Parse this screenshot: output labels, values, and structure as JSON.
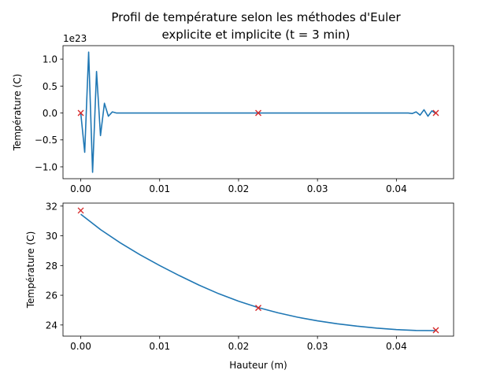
{
  "figure": {
    "title_line1": "Profil de température selon les méthodes d'Euler",
    "title_line2": "explicite et implicite (t = 3 min)"
  },
  "colors": {
    "line": "#1f77b4",
    "marker": "#d62728",
    "axes": "#000000",
    "background": "#ffffff"
  },
  "chart_data": [
    {
      "type": "line",
      "name": "explicit",
      "xlabel": "",
      "ylabel": "Température (C)",
      "offset_label": "1e23",
      "xlim": [
        -0.00225,
        0.04725
      ],
      "ylim": [
        -1.22,
        1.25
      ],
      "x_ticks": [
        0.0,
        0.01,
        0.02,
        0.03,
        0.04
      ],
      "x_tick_labels": [
        "0.00",
        "0.01",
        "0.02",
        "0.03",
        "0.04"
      ],
      "y_ticks": [
        -1.0,
        -0.5,
        0.0,
        0.5,
        1.0
      ],
      "y_tick_labels": [
        "−1.0",
        "−0.5",
        "0.0",
        "0.5",
        "1.0"
      ],
      "grid": false,
      "line": {
        "x": [
          0.0,
          0.0005,
          0.001,
          0.0015,
          0.002,
          0.0025,
          0.003,
          0.0035,
          0.004,
          0.0045,
          0.005,
          0.0415,
          0.042,
          0.0425,
          0.043,
          0.0435,
          0.044,
          0.0445,
          0.045
        ],
        "y": [
          0.0,
          -0.73,
          1.13,
          -1.1,
          0.77,
          -0.42,
          0.18,
          -0.06,
          0.02,
          0.0,
          0.0,
          0.0,
          -0.01,
          0.02,
          -0.04,
          0.06,
          -0.06,
          0.04,
          -0.01
        ]
      },
      "markers": {
        "x": [
          0.0,
          0.0225,
          0.045
        ],
        "y": [
          0.0,
          0.0,
          0.0
        ]
      }
    },
    {
      "type": "line",
      "name": "implicit",
      "xlabel": "Hauteur (m)",
      "ylabel": "Température (C)",
      "xlim": [
        -0.00225,
        0.04725
      ],
      "ylim": [
        23.25,
        32.2
      ],
      "x_ticks": [
        0.0,
        0.01,
        0.02,
        0.03,
        0.04
      ],
      "x_tick_labels": [
        "0.00",
        "0.01",
        "0.02",
        "0.03",
        "0.04"
      ],
      "y_ticks": [
        24,
        26,
        28,
        30,
        32
      ],
      "y_tick_labels": [
        "24",
        "26",
        "28",
        "30",
        "32"
      ],
      "grid": false,
      "line": {
        "x": [
          0.0,
          0.0025,
          0.005,
          0.0075,
          0.01,
          0.0125,
          0.015,
          0.0175,
          0.02,
          0.0225,
          0.025,
          0.0275,
          0.03,
          0.0325,
          0.035,
          0.0375,
          0.04,
          0.0425,
          0.045
        ],
        "y": [
          31.45,
          30.42,
          29.53,
          28.73,
          28.0,
          27.32,
          26.68,
          26.1,
          25.6,
          25.17,
          24.82,
          24.52,
          24.28,
          24.08,
          23.92,
          23.79,
          23.69,
          23.63,
          23.62
        ]
      },
      "markers": {
        "x": [
          0.0,
          0.0225,
          0.045
        ],
        "y": [
          31.7,
          25.15,
          23.65
        ]
      }
    }
  ]
}
